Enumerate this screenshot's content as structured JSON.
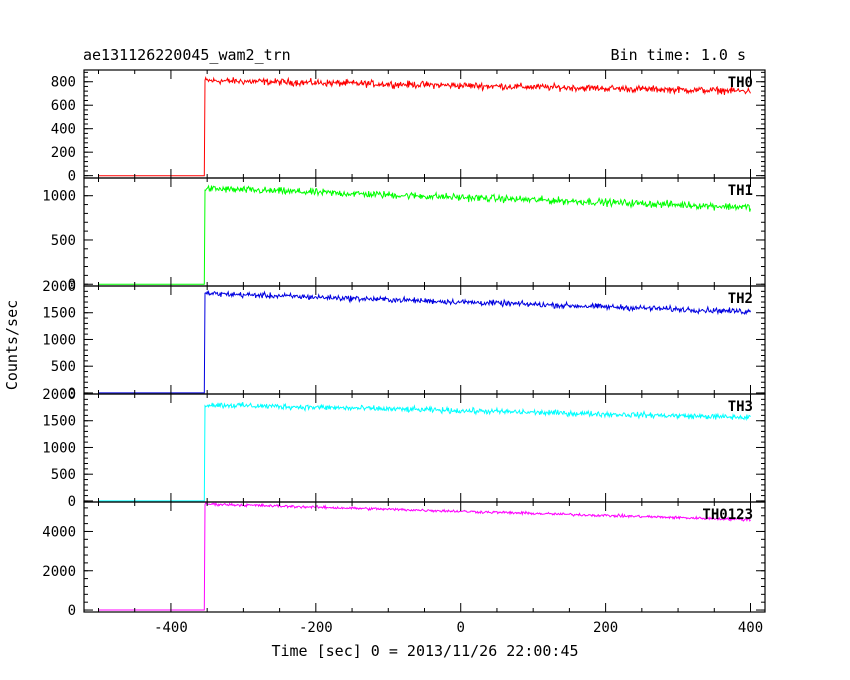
{
  "header": {
    "title": "ae131126220045_wam2_trn",
    "bin_time": "Bin time: 1.0 s"
  },
  "xlabel": "Time [sec] 0 = 2013/11/26 22:00:45",
  "ylabel": "Counts/sec",
  "chart_data": [
    {
      "type": "line",
      "label": "TH0",
      "color": "#ff0000",
      "xlim": [
        -520,
        420
      ],
      "ylim": [
        -20,
        900
      ],
      "yticks": [
        0,
        200,
        400,
        600,
        800
      ],
      "xticks": [
        -400,
        -200,
        0,
        200,
        400
      ],
      "x_start": -500,
      "x_end": 400,
      "step_time": -353,
      "pre_level": 0,
      "post_start": 810,
      "post_end": 720,
      "noise": 25
    },
    {
      "type": "line",
      "label": "TH1",
      "color": "#00ff00",
      "xlim": [
        -520,
        420
      ],
      "ylim": [
        -20,
        1200
      ],
      "yticks": [
        0,
        500,
        1000
      ],
      "xticks": [
        -400,
        -200,
        0,
        200,
        400
      ],
      "x_start": -500,
      "x_end": 400,
      "step_time": -353,
      "pre_level": 0,
      "post_start": 1080,
      "post_end": 870,
      "noise": 35
    },
    {
      "type": "line",
      "label": "TH2",
      "color": "#0000e0",
      "xlim": [
        -520,
        420
      ],
      "ylim": [
        -20,
        2000
      ],
      "yticks": [
        0,
        500,
        1000,
        1500,
        2000
      ],
      "xticks": [
        -400,
        -200,
        0,
        200,
        400
      ],
      "x_start": -500,
      "x_end": 400,
      "step_time": -353,
      "pre_level": 0,
      "post_start": 1860,
      "post_end": 1520,
      "noise": 45
    },
    {
      "type": "line",
      "label": "TH3",
      "color": "#00ffff",
      "xlim": [
        -520,
        420
      ],
      "ylim": [
        -20,
        2000
      ],
      "yticks": [
        0,
        500,
        1000,
        1500,
        2000
      ],
      "xticks": [
        -400,
        -200,
        0,
        200,
        400
      ],
      "x_start": -500,
      "x_end": 400,
      "step_time": -353,
      "pre_level": 0,
      "post_start": 1800,
      "post_end": 1560,
      "noise": 45
    },
    {
      "type": "line",
      "label": "TH0123",
      "color": "#ff00ff",
      "xlim": [
        -520,
        420
      ],
      "ylim": [
        -100,
        5500
      ],
      "yticks": [
        0,
        2000,
        4000
      ],
      "xticks": [
        -400,
        -200,
        0,
        200,
        400
      ],
      "x_start": -500,
      "x_end": 400,
      "step_time": -353,
      "pre_level": 0,
      "post_start": 5400,
      "post_end": 4600,
      "noise": 60
    }
  ]
}
